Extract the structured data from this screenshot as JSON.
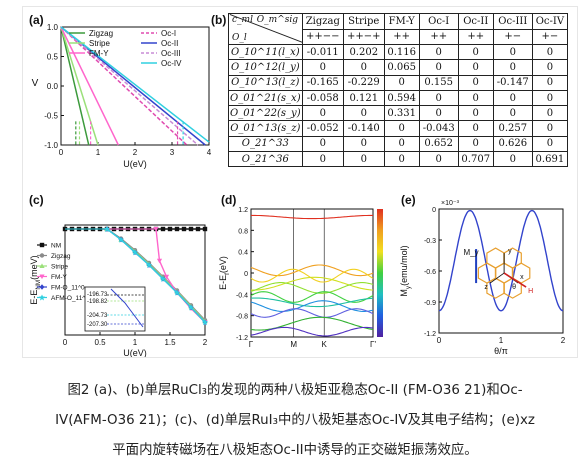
{
  "figure": {
    "panel_labels": {
      "a": "(a)",
      "b": "(b)",
      "c": "(c)",
      "d": "(d)",
      "e": "(e)"
    }
  },
  "chart_data": [
    {
      "panel": "a",
      "type": "line",
      "xlabel": "U(eV)",
      "ylabel": "V",
      "xlim": [
        0,
        4
      ],
      "ylim": [
        -1.0,
        1.0
      ],
      "xticks": [
        "0",
        "1",
        "2",
        "3",
        "4"
      ],
      "yticks": [
        "1.0",
        "0.5",
        "0.0",
        "-0.5",
        "-1.0"
      ],
      "series": [
        {
          "name": "Zigzag",
          "color": "#3c9a3c",
          "style": "solid",
          "x": [
            0,
            0.75
          ],
          "y": [
            1.0,
            -1.0
          ]
        },
        {
          "name": "Stripe",
          "color": "#9be07a",
          "style": "solid",
          "x": [
            0,
            1.0
          ],
          "y": [
            1.0,
            -1.0
          ]
        },
        {
          "name": "FM-Y",
          "color": "#ff66cc",
          "style": "solid",
          "x": [
            0,
            1.55
          ],
          "y": [
            1.0,
            -1.0
          ]
        },
        {
          "name": "Oc-I",
          "color": "#e04bb0",
          "style": "dashed",
          "x": [
            0,
            3.4
          ],
          "y": [
            1.0,
            -1.0
          ]
        },
        {
          "name": "Oc-II",
          "color": "#3344cc",
          "style": "solid",
          "x": [
            0,
            3.9
          ],
          "y": [
            1.0,
            -1.0
          ]
        },
        {
          "name": "Oc-III",
          "color": "#c98cd6",
          "style": "dashed",
          "x": [
            0,
            3.7
          ],
          "y": [
            1.0,
            -1.0
          ]
        },
        {
          "name": "Oc-IV",
          "color": "#30d0e0",
          "style": "solid",
          "x": [
            0,
            4.0
          ],
          "y": [
            1.0,
            -0.95
          ]
        }
      ],
      "vlines": [
        {
          "x": 0.4,
          "color": "#3c9a3c",
          "y": [
            -0.6,
            -1.0
          ]
        },
        {
          "x": 0.5,
          "color": "#9be07a",
          "y": [
            -0.6,
            -1.0
          ]
        },
        {
          "x": 0.8,
          "color": "#ff66cc",
          "y": [
            -0.6,
            -1.0
          ]
        },
        {
          "x": 3.15,
          "color": "#e04bb0",
          "y": [
            -0.6,
            -1.0
          ]
        },
        {
          "x": 3.3,
          "color": "#30d0e0",
          "y": [
            -0.6,
            -1.0
          ]
        }
      ],
      "legend": "top"
    },
    {
      "panel": "c",
      "type": "line",
      "xlabel": "U(eV)",
      "ylabel": "E-E_NM(meV)",
      "xlim": [
        0,
        2
      ],
      "xticks": [
        "0",
        "0.5",
        "1",
        "1.5",
        "2"
      ],
      "series": [
        {
          "name": "NM",
          "color": "#111111",
          "marker": "square",
          "x": [
            0,
            0.1,
            0.2,
            0.3,
            0.4,
            0.5,
            0.6,
            0.7,
            0.8,
            0.9,
            1.0,
            1.1,
            1.2,
            1.3,
            1.4,
            1.5,
            1.6,
            1.7,
            1.8,
            1.9,
            2.0
          ],
          "y": [
            0,
            0,
            0,
            0,
            0,
            0,
            0,
            0,
            0,
            0,
            0,
            0,
            0,
            0,
            0,
            0,
            0,
            0,
            0,
            0,
            0
          ]
        },
        {
          "name": "Zigzag",
          "color": "#8a8a8a",
          "marker": "circle",
          "x": [
            0.6,
            0.8,
            1.0,
            1.2,
            1.4,
            1.6,
            1.8,
            2.0
          ],
          "y": [
            0,
            -0.09,
            -0.2,
            -0.32,
            -0.45,
            -0.58,
            -0.72,
            -0.86
          ]
        },
        {
          "name": "Stripe",
          "color": "#9be07a",
          "marker": "triangle",
          "x": [
            0.6,
            0.8,
            1.0,
            1.2,
            1.4,
            1.6,
            1.8,
            2.0
          ],
          "y": [
            0,
            -0.1,
            -0.21,
            -0.33,
            -0.46,
            -0.59,
            -0.73,
            -0.87
          ]
        },
        {
          "name": "FM-Y",
          "color": "#ff66cc",
          "marker": "triangle-down",
          "x": [
            1.3,
            1.35,
            1.45,
            1.6,
            1.8,
            2.0
          ],
          "y": [
            0,
            -0.3,
            -0.45,
            -0.6,
            -0.75,
            -0.88
          ]
        },
        {
          "name": "FM-O_11^0",
          "color": "#3344cc",
          "marker": "diamond",
          "x": [
            0.6,
            0.8,
            1.0,
            1.2,
            1.4,
            1.6,
            1.8,
            2.0
          ],
          "y": [
            0,
            -0.1,
            -0.22,
            -0.34,
            -0.47,
            -0.6,
            -0.74,
            -0.88
          ]
        },
        {
          "name": "AFM-O_11^0",
          "color": "#30d0e0",
          "marker": "star",
          "x": [
            0.6,
            0.8,
            1.0,
            1.2,
            1.4,
            1.6,
            1.8,
            2.0
          ],
          "y": [
            0,
            -0.1,
            -0.22,
            -0.34,
            -0.47,
            -0.6,
            -0.74,
            -0.88
          ]
        }
      ],
      "inset_labels": [
        "-196.73",
        "-198.82",
        "-204.73",
        "-207.30"
      ],
      "legend": "left"
    },
    {
      "panel": "d",
      "type": "line",
      "xlabel": "",
      "ylabel": "E-E_f(eV)",
      "ylim": [
        -1.2,
        1.2
      ],
      "yticks": [
        "1.2",
        "0.8",
        "0.4",
        "0",
        "-0.4",
        "-0.8",
        "-1.2"
      ],
      "xticks": [
        "Γ",
        "M",
        "K",
        "Γ'"
      ]
    },
    {
      "panel": "e",
      "type": "line",
      "xlabel": "θ/π",
      "ylabel": "M_y(emu/mol)",
      "y_multiplier": "×10⁻³",
      "xlim": [
        0,
        2
      ],
      "ylim": [
        -1.2,
        0
      ],
      "xticks": [
        "0",
        "1",
        "2"
      ],
      "yticks": [
        "0",
        "-0.3",
        "-0.6",
        "-0.9",
        "-1.2"
      ],
      "series": [
        {
          "name": "",
          "color": "#3344cc",
          "x": [
            0,
            0.25,
            0.5,
            0.75,
            1.0,
            1.25,
            1.5,
            1.75,
            2.0
          ],
          "y": [
            -0.95,
            -0.47,
            0,
            -0.47,
            -1.0,
            -0.47,
            0,
            -0.47,
            -0.95
          ]
        }
      ],
      "inset_labels": [
        "M_y",
        "y",
        "z",
        "x",
        "θ",
        "H"
      ]
    }
  ],
  "table": {
    "corner_top": "O_m^sig",
    "corner_left": "c_ml",
    "corner_bottom": "O_l",
    "headers": [
      "Zigzag",
      "Stripe",
      "FM-Y",
      "Oc-I",
      "Oc-II",
      "Oc-III",
      "Oc-IV"
    ],
    "signs": [
      "++−−",
      "++−+",
      "++",
      "++",
      "++",
      "+−",
      "+−"
    ],
    "rows": [
      {
        "label": "O_10^11(l_x)",
        "values": [
          "-0.011",
          "0.202",
          "0.116",
          "0",
          "0",
          "0",
          "0"
        ]
      },
      {
        "label": "O_10^12(l_y)",
        "values": [
          "0",
          "0",
          "0.065",
          "0",
          "0",
          "0",
          "0"
        ]
      },
      {
        "label": "O_10^13(l_z)",
        "values": [
          "-0.165",
          "-0.229",
          "0",
          "0.155",
          "0",
          "-0.147",
          "0"
        ]
      },
      {
        "label": "O_01^21(s_x)",
        "values": [
          "-0.058",
          "0.121",
          "0.594",
          "0",
          "0",
          "0",
          "0"
        ]
      },
      {
        "label": "O_01^22(s_y)",
        "values": [
          "0",
          "0",
          "0.331",
          "0",
          "0",
          "0",
          "0"
        ]
      },
      {
        "label": "O_01^13(s_z)",
        "values": [
          "-0.052",
          "-0.140",
          "0",
          "-0.043",
          "0",
          "0.257",
          "0"
        ]
      },
      {
        "label": "O_21^33",
        "values": [
          "0",
          "0",
          "0",
          "0.652",
          "0",
          "0.626",
          "0"
        ]
      },
      {
        "label": "O_21^36",
        "values": [
          "0",
          "0",
          "0",
          "0",
          "0.707",
          "0",
          "0.691"
        ]
      }
    ]
  },
  "caption": {
    "line1": "图2 (a)、(b)单层RuCl₃的发现的两种八极矩亚稳态Oc-II (FM-O36 21)和Oc-",
    "line2": "IV(AFM-O36 21)；(c)、(d)单层RuI₃中的八极矩基态Oc-IV及其电子结构；(e)xz",
    "line3": "平面内旋转磁场在八极矩态Oc-II中诱导的正交磁矩振荡效应。"
  }
}
